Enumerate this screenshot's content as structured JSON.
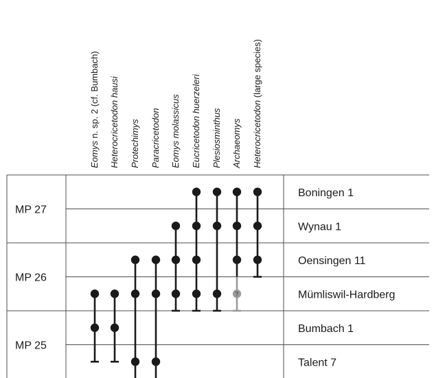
{
  "taxa": [
    {
      "parts": [
        {
          "text": "Eomys",
          "italic": true
        },
        {
          "text": " n. sp. 2 (cf. Bumbach)",
          "italic": false
        }
      ]
    },
    {
      "parts": [
        {
          "text": "Heterocricetodon hausi",
          "italic": true
        }
      ]
    },
    {
      "parts": [
        {
          "text": "Protechimys",
          "italic": true
        }
      ]
    },
    {
      "parts": [
        {
          "text": "Paracricetodon",
          "italic": true
        }
      ]
    },
    {
      "parts": [
        {
          "text": "Eomys molassicus",
          "italic": true
        }
      ]
    },
    {
      "parts": [
        {
          "text": "Eucricetodon huerzeleri",
          "italic": true
        }
      ]
    },
    {
      "parts": [
        {
          "text": "Plesiosminthus",
          "italic": true
        }
      ]
    },
    {
      "parts": [
        {
          "text": "Archaeomys",
          "italic": true
        }
      ]
    },
    {
      "parts": [
        {
          "text": "Heterocricetodon",
          "italic": true
        },
        {
          "text": " (large species)",
          "italic": false
        }
      ]
    }
  ],
  "mp_zones": [
    "MP 27",
    "MP 26",
    "MP 25"
  ],
  "localities": [
    "Boningen 1",
    "Wynau 1",
    "Oensingen 11",
    "Mümliswil-Hardberg",
    "Bumbach 1",
    "Talent 7"
  ],
  "ranges": [
    {
      "taxon": 0,
      "from": 3.5,
      "to": 5.5,
      "points": [
        3,
        4
      ],
      "uncertain": []
    },
    {
      "taxon": 1,
      "from": 3.5,
      "to": 5.5,
      "points": [
        3,
        4
      ],
      "uncertain": []
    },
    {
      "taxon": 2,
      "from": 2.5,
      "to": 6,
      "points": [
        2,
        3,
        5
      ],
      "uncertain": []
    },
    {
      "taxon": 3,
      "from": 2.5,
      "to": 6,
      "points": [
        2,
        3,
        5
      ],
      "uncertain": []
    },
    {
      "taxon": 4,
      "from": 1.5,
      "to": 4,
      "points": [
        1,
        2,
        3
      ],
      "uncertain": []
    },
    {
      "taxon": 5,
      "from": 0.5,
      "to": 4,
      "points": [
        0,
        1,
        2,
        3
      ],
      "uncertain": []
    },
    {
      "taxon": 6,
      "from": 0.5,
      "to": 4,
      "points": [
        0,
        1,
        3
      ],
      "uncertain": []
    },
    {
      "taxon": 7,
      "from": 0.5,
      "to": 4,
      "points": [
        0,
        1,
        2
      ],
      "uncertain": [
        3
      ],
      "uncertain_label": "?"
    },
    {
      "taxon": 8,
      "from": 0.5,
      "to": 3,
      "points": [
        0,
        1,
        2
      ],
      "uncertain": []
    }
  ],
  "colors": {
    "line": "#1a1a1a",
    "grid": "#4d4d4d",
    "uncertain": "#9a9a9a"
  }
}
